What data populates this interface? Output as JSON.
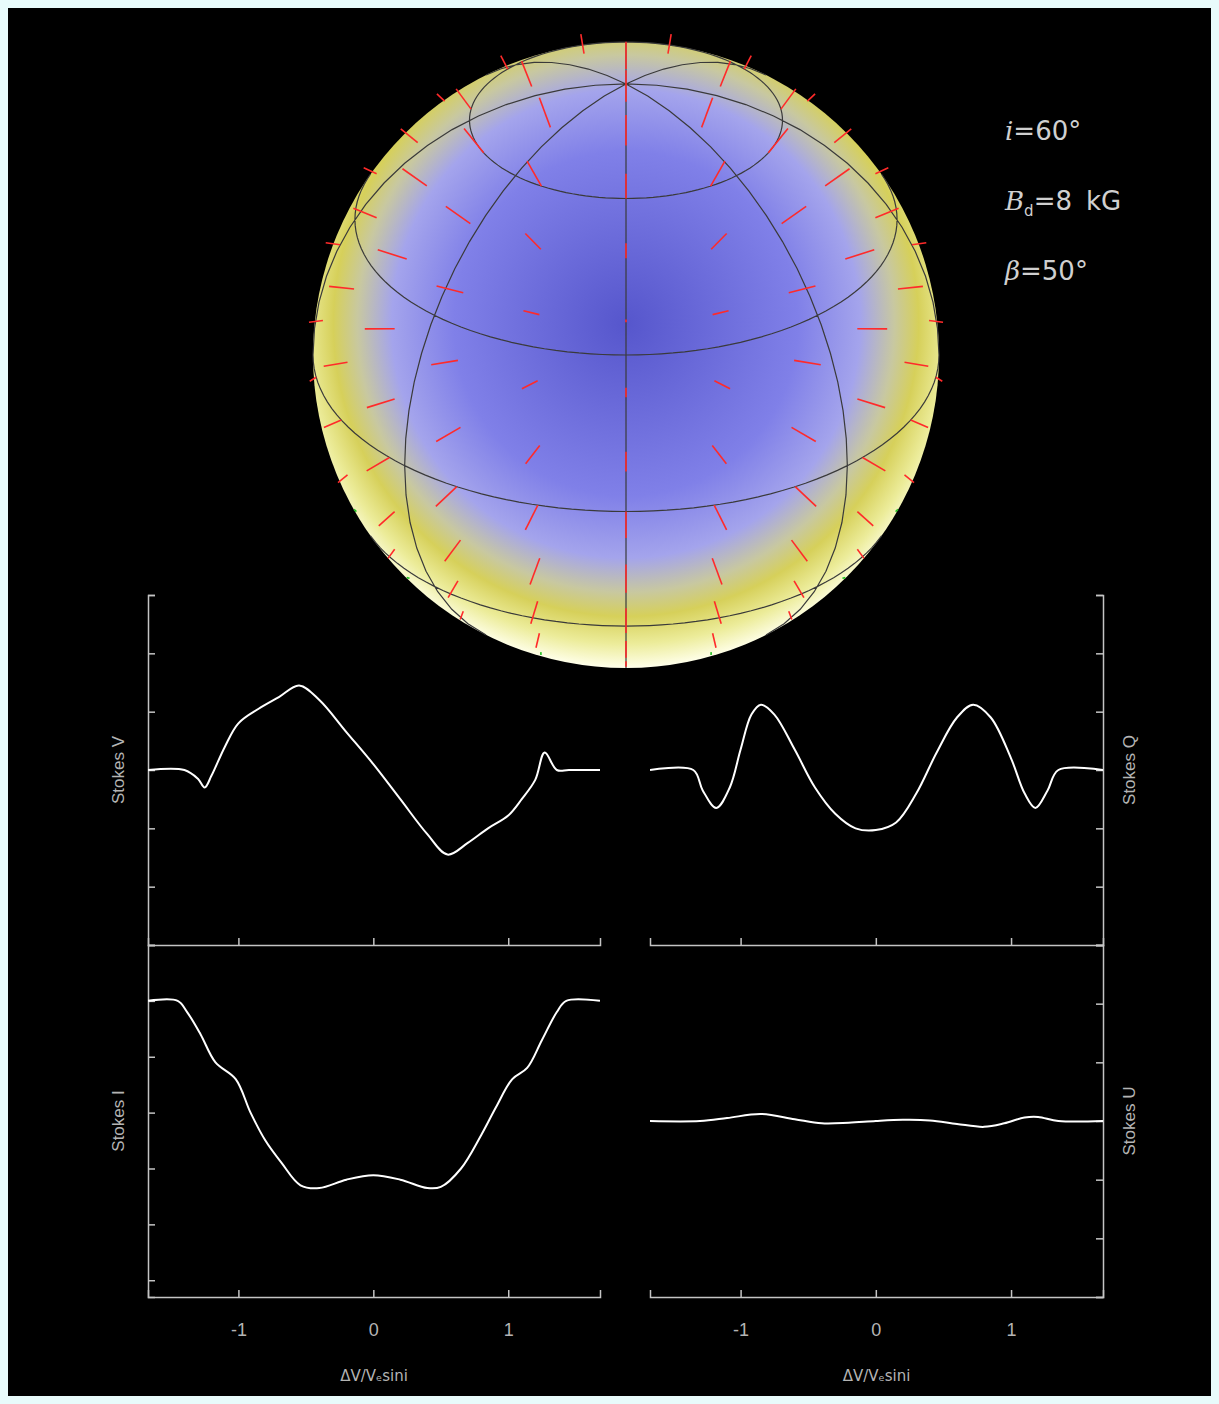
{
  "chart_data": [
    {
      "type": "line",
      "ylabel": "Stokes V",
      "color": "#ffffff",
      "grid": false,
      "tick_labels": false,
      "xlim": [
        -1.67,
        1.68
      ],
      "xticks": [
        -1,
        0,
        1
      ],
      "ylim": [
        -3,
        3
      ],
      "yticks": [
        -3,
        -2,
        -1,
        0,
        1,
        2,
        3
      ],
      "x": [
        -1.67,
        -1.4,
        -1.3,
        -1.25,
        -1.2,
        -1.1,
        -1.0,
        -0.85,
        -0.7,
        -0.55,
        -0.4,
        -0.2,
        0,
        0.2,
        0.4,
        0.55,
        0.7,
        0.85,
        1.0,
        1.1,
        1.2,
        1.27,
        1.36,
        1.45,
        1.68
      ],
      "values": [
        0,
        0,
        -0.15,
        -0.3,
        -0.1,
        0.4,
        0.8,
        1.05,
        1.25,
        1.45,
        1.2,
        0.65,
        0.1,
        -0.5,
        -1.1,
        -1.45,
        -1.25,
        -1.0,
        -0.78,
        -0.5,
        -0.17,
        0.3,
        0,
        0,
        0
      ]
    },
    {
      "type": "line",
      "ylabel": "Stokes Q",
      "color": "#ffffff",
      "grid": false,
      "tick_labels": false,
      "xlim": [
        -1.67,
        1.68
      ],
      "xticks": [
        -1,
        0,
        1
      ],
      "ylim": [
        -3,
        3
      ],
      "yticks": [
        -3,
        -2,
        -1,
        0,
        1,
        2,
        3
      ],
      "x": [
        -1.67,
        -1.35,
        -1.28,
        -1.18,
        -1.08,
        -1.0,
        -0.92,
        -0.85,
        -0.75,
        -0.6,
        -0.45,
        -0.3,
        -0.15,
        0,
        0.15,
        0.3,
        0.45,
        0.6,
        0.72,
        0.85,
        1.0,
        1.1,
        1.18,
        1.27,
        1.35,
        1.68
      ],
      "values": [
        0,
        0,
        -0.35,
        -0.65,
        -0.3,
        0.35,
        0.95,
        1.12,
        0.95,
        0.35,
        -0.3,
        -0.75,
        -1.0,
        -1.03,
        -0.9,
        -0.4,
        0.3,
        0.9,
        1.12,
        0.9,
        0.2,
        -0.4,
        -0.65,
        -0.35,
        0,
        0
      ]
    },
    {
      "type": "line",
      "ylabel": "Stokes I",
      "xlabel": "ΔV/Vₑsini",
      "color": "#ffffff",
      "grid": false,
      "tick_labels": "x",
      "xlim": [
        -1.67,
        1.68
      ],
      "xticks": [
        -1,
        0,
        1
      ],
      "ylim": [
        0.47,
        1.1
      ],
      "yticks": [
        0.5,
        0.6,
        0.7,
        0.8,
        0.9,
        1
      ],
      "x": [
        -1.67,
        -1.45,
        -1.38,
        -1.28,
        -1.17,
        -1.02,
        -0.91,
        -0.8,
        -0.68,
        -0.54,
        -0.4,
        -0.2,
        0,
        0.2,
        0.4,
        0.5,
        0.65,
        0.8,
        0.91,
        1.03,
        1.14,
        1.25,
        1.36,
        1.43,
        1.68
      ],
      "values": [
        1,
        1,
        0.98,
        0.94,
        0.89,
        0.86,
        0.8,
        0.75,
        0.71,
        0.67,
        0.665,
        0.68,
        0.688,
        0.68,
        0.665,
        0.667,
        0.7,
        0.76,
        0.81,
        0.86,
        0.88,
        0.93,
        0.98,
        1,
        1
      ]
    },
    {
      "type": "line",
      "ylabel": "Stokes U",
      "xlabel": "ΔV/Vₑsini",
      "color": "#ffffff",
      "grid": false,
      "tick_labels": "x",
      "xlim": [
        -1.67,
        1.68
      ],
      "xticks": [
        -1,
        0,
        1
      ],
      "ylim": [
        -3,
        3
      ],
      "yticks": [
        -3,
        -2,
        -1,
        0,
        1,
        2,
        3
      ],
      "x": [
        -1.67,
        -1.3,
        -1.1,
        -0.85,
        -0.6,
        -0.4,
        -0.2,
        0,
        0.2,
        0.4,
        0.6,
        0.8,
        0.95,
        1.1,
        1.2,
        1.35,
        1.68
      ],
      "values": [
        0,
        0,
        0.05,
        0.12,
        0.03,
        -0.04,
        -0.03,
        0,
        0.02,
        0.01,
        -0.05,
        -0.1,
        -0.04,
        0.06,
        0.07,
        0,
        0
      ]
    }
  ],
  "annotations": [
    {
      "symbol": "i",
      "sign": "=",
      "value": 60,
      "unit": "°"
    },
    {
      "symbol": "B",
      "subscript": "d",
      "sign": "=",
      "value": 8,
      "unit": "kG"
    },
    {
      "symbol": "β",
      "sign": "=",
      "value": 50,
      "unit": "°"
    }
  ]
}
